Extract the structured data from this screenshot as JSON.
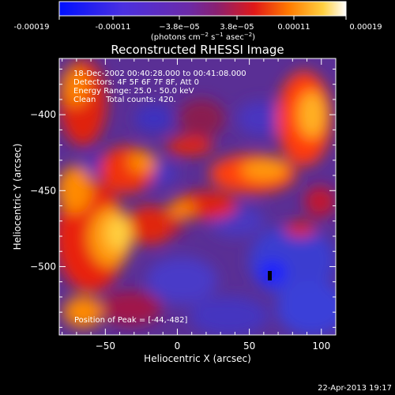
{
  "colorbar": {
    "ticks": [
      "-0.00019",
      "-0.00011",
      "−3.8e−05",
      "3.8e−05",
      "0.00011",
      "0.00019"
    ],
    "units_main": "(photons cm",
    "units_exp1": "−2",
    "units_mid": " s",
    "units_exp2": "−1",
    "units_mid2": " asec",
    "units_exp3": "−2",
    "units_end": ")"
  },
  "image": {
    "title": "Reconstructed RHESSI Image",
    "info": [
      "18-Dec-2002 00:40:28.000 to 00:41:08.000",
      "Detectors: 4F 5F 6F 7F 8F, Att 0",
      "Energy Range: 25.0 - 50.0 keV",
      "Clean    Total counts: 420."
    ],
    "peak_text": "Position of Peak = [-44,-482]",
    "peak": [
      -44,
      -482
    ]
  },
  "axes": {
    "xlabel": "Heliocentric X (arcsec)",
    "ylabel": "Heliocentric Y (arcsec)",
    "xticks": [
      -50,
      0,
      50,
      100
    ],
    "xtick_labels": [
      "−50",
      "0",
      "50",
      "100"
    ],
    "yticks": [
      -400,
      -450,
      -500
    ],
    "ytick_labels": [
      "−400",
      "−450",
      "−500"
    ],
    "xlim": [
      -82,
      110
    ],
    "ylim": [
      -545,
      -363
    ]
  },
  "timestamp": "22-Apr-2013 19:17",
  "colors": {
    "background": "#000000",
    "colormap": [
      "#0000ff",
      "#5a3cc0",
      "#6a2f9a",
      "#a01e5a",
      "#ff2a00",
      "#ff9000",
      "#ffe060",
      "#ffffff"
    ]
  }
}
